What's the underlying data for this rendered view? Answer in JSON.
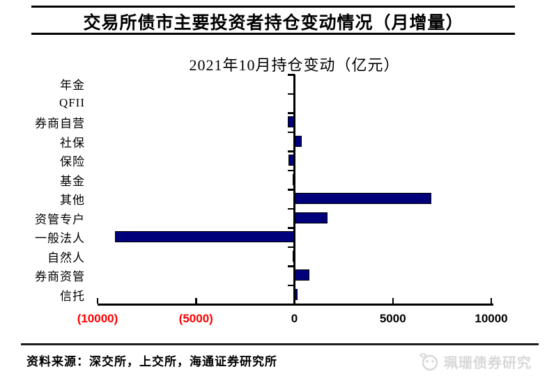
{
  "header": {
    "title": "交易所债市主要投资者持仓变动情况（月增量）"
  },
  "chart_data": {
    "type": "bar",
    "orientation": "horizontal",
    "title": "2021年10月持仓变动（亿元）",
    "categories": [
      "年金",
      "QFII",
      "券商自营",
      "社保",
      "保险",
      "基金",
      "其他",
      "资管专户",
      "一般法人",
      "自然人",
      "券商资管",
      "信托"
    ],
    "values": [
      0,
      0,
      -300,
      300,
      -250,
      -50,
      6900,
      1600,
      -9050,
      -30,
      700,
      100
    ],
    "xlim": [
      -10000,
      10000
    ],
    "x_ticks": [
      -10000,
      -5000,
      0,
      5000,
      10000
    ],
    "x_tick_labels": [
      "(10000)",
      "(5000)",
      "0",
      "5000",
      "10000"
    ],
    "negative_tick_color": "#ff0000",
    "positive_tick_color": "#000000",
    "bar_color": "#00007a",
    "grid": false,
    "legend": false
  },
  "footer": {
    "source": "资料来源：深交所，上交所，海通证券研究所"
  },
  "watermark": {
    "label": "珮珊债券研究",
    "icon": "panda-face-icon"
  }
}
